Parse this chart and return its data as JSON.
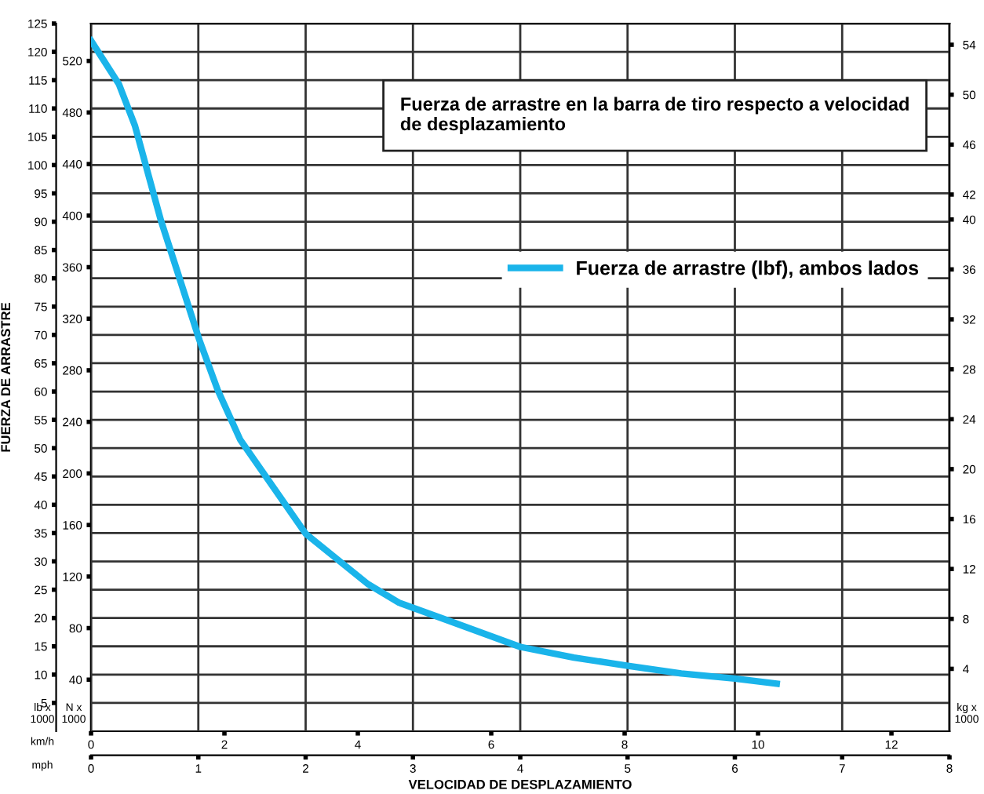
{
  "chart_data": {
    "type": "line",
    "title": "Fuerza de arrastre en la barra de tiro respecto a velocidad de desplazamiento",
    "xlabel": "VELOCIDAD DE DESPLAZAMIENTO",
    "ylabel": "FUERZA DE ARRASTRE",
    "x": [
      0,
      0.26,
      0.41,
      0.65,
      1.01,
      1.18,
      1.39,
      2.0,
      2.58,
      2.87,
      3.35,
      4.0,
      4.5,
      4.99,
      5.5,
      6.0,
      6.39
    ],
    "series": [
      {
        "name": "Fuerza de arrastre (lbf), ambos lados",
        "color": "#1ab4ea",
        "values": [
          122,
          114.3,
          106.9,
          90.3,
          69.1,
          60.3,
          51.5,
          34.9,
          26.0,
          22.7,
          19.4,
          14.9,
          13.0,
          11.6,
          10.2,
          9.3,
          8.4
        ]
      }
    ],
    "xlim": [
      0,
      8
    ],
    "xticks": [
      0,
      1,
      2,
      3,
      4,
      5,
      6,
      7,
      8
    ],
    "x2lim": [
      0,
      12.87
    ],
    "x2ticks": [
      0,
      2,
      4,
      6,
      8,
      10,
      12
    ],
    "ylim": [
      0,
      125
    ],
    "yticks": [
      5,
      10,
      15,
      20,
      25,
      30,
      35,
      40,
      45,
      50,
      55,
      60,
      65,
      70,
      75,
      80,
      85,
      90,
      95,
      100,
      105,
      110,
      115,
      120,
      125
    ],
    "y2lim": [
      -1.0,
      55.7
    ],
    "y2ticks": [
      4,
      8,
      12,
      16,
      20,
      24,
      28,
      32,
      36,
      40,
      42,
      46,
      50,
      54
    ],
    "y3lim": [
      0,
      549
    ],
    "y3ticks": [
      40,
      80,
      120,
      160,
      200,
      240,
      280,
      320,
      360,
      400,
      440,
      480,
      520
    ],
    "annotations": [
      "lb x 1000",
      "N x 1000",
      "kg x 1000",
      "km/h",
      "mph"
    ],
    "grid": true,
    "legend": "top right",
    "marker": "none",
    "line_style": "solid"
  }
}
